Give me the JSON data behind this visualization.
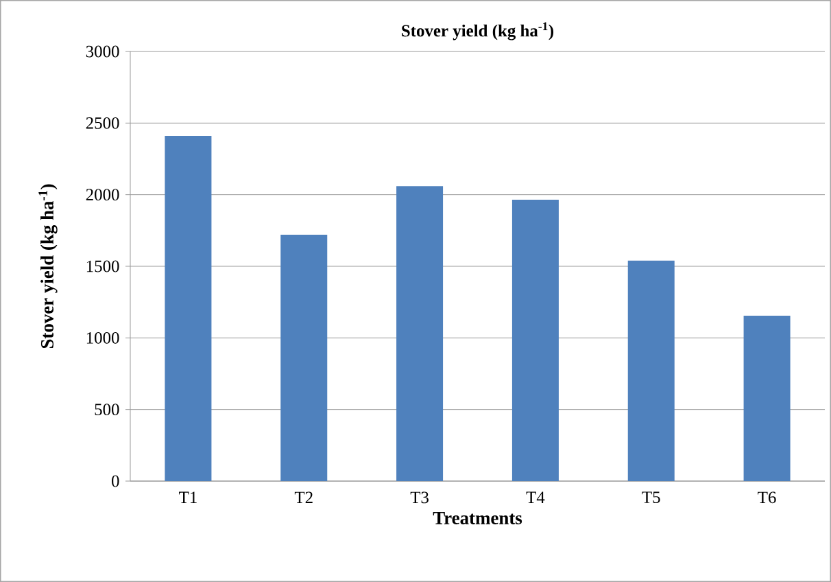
{
  "chart_data": {
    "type": "bar",
    "title": "Stover yield (kg ha$^{-1}$)",
    "xlabel": "Treatments",
    "ylabel": "Stover yield (kg ha$^{-1}$)",
    "categories": [
      "T1",
      "T2",
      "T3",
      "T4",
      "T5",
      "T6"
    ],
    "values": [
      2410,
      1720,
      2060,
      1965,
      1540,
      1155
    ],
    "color": "#4f81bd",
    "ylim": [
      0,
      3000
    ],
    "yticks": [
      0,
      500,
      1000,
      1500,
      2000,
      2500,
      3000
    ],
    "grid": "y"
  }
}
